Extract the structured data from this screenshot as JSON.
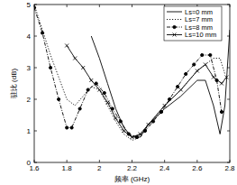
{
  "chart_data": {
    "type": "line",
    "x_label": "频率 (GHz)",
    "y_label": "驻比 (dB)",
    "xlim": [
      1.6,
      2.8
    ],
    "ylim": [
      0,
      5
    ],
    "xticks": [
      1.6,
      1.8,
      2,
      2.2,
      2.4,
      2.6,
      2.8
    ],
    "yticks": [
      0,
      1,
      2,
      3,
      4,
      5
    ],
    "grid": false,
    "legend": "upper right",
    "series": [
      {
        "name": "Ls=0 mm",
        "color": "#000000",
        "line_style": "solid",
        "x": [
          1.95,
          2.0,
          2.05,
          2.1,
          2.15,
          2.2,
          2.25,
          2.3,
          2.4,
          2.5,
          2.6,
          2.65,
          2.7,
          2.74,
          2.77,
          2.8
        ],
        "values": [
          4.0,
          3.3,
          2.5,
          1.7,
          1.1,
          0.8,
          0.8,
          1.2,
          1.7,
          2.1,
          2.6,
          2.6,
          1.8,
          0.9,
          1.8,
          4.2
        ]
      },
      {
        "name": "Ls=7 mm",
        "color": "#000000",
        "line_style": "dotted",
        "x": [
          1.6,
          1.7,
          1.8,
          1.85,
          1.9,
          1.95,
          2.0,
          2.05,
          2.1,
          2.15,
          2.2,
          2.25,
          2.3,
          2.4,
          2.5,
          2.6,
          2.7,
          2.74,
          2.77
        ],
        "values": [
          5.0,
          3.4,
          2.0,
          1.8,
          2.1,
          2.4,
          2.3,
          1.8,
          1.3,
          0.9,
          0.7,
          0.8,
          1.2,
          1.8,
          2.3,
          2.9,
          3.3,
          3.3,
          2.8
        ]
      },
      {
        "name": "Ls=8 mm",
        "color": "#000000",
        "line_style": "dashdot",
        "marker": "dot",
        "x": [
          1.6,
          1.65,
          1.7,
          1.75,
          1.8,
          1.83,
          1.88,
          1.93,
          1.98,
          2.03,
          2.08,
          2.13,
          2.18,
          2.23,
          2.28,
          2.33,
          2.38,
          2.43,
          2.48,
          2.53,
          2.58,
          2.63,
          2.68,
          2.72,
          2.75
        ],
        "values": [
          4.9,
          4.1,
          3.0,
          2.0,
          1.1,
          1.1,
          1.7,
          2.3,
          2.5,
          2.2,
          1.7,
          1.3,
          0.9,
          0.8,
          1.0,
          1.3,
          1.6,
          2.0,
          2.4,
          2.8,
          3.1,
          3.4,
          3.4,
          2.6,
          1.6
        ]
      },
      {
        "name": "Ls=10 mm",
        "color": "#000000",
        "line_style": "solid",
        "marker": "x",
        "x": [
          1.8,
          1.85,
          1.9,
          1.95,
          2.0,
          2.05,
          2.1,
          2.15,
          2.2,
          2.25,
          2.3,
          2.4,
          2.5,
          2.6,
          2.65,
          2.7,
          2.75,
          2.78
        ],
        "values": [
          3.7,
          3.3,
          3.0,
          2.6,
          2.3,
          1.9,
          1.4,
          1.0,
          0.8,
          0.9,
          1.2,
          1.8,
          2.3,
          2.9,
          3.1,
          2.7,
          2.5,
          2.7
        ]
      }
    ]
  }
}
